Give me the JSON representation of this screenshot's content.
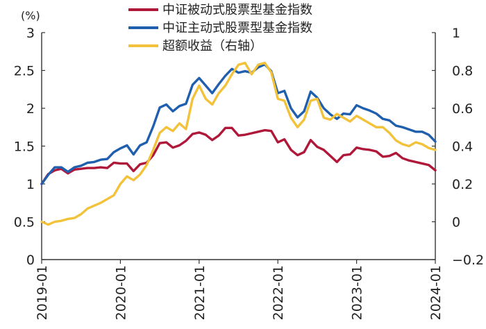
{
  "chart_data": {
    "type": "line",
    "unit_label": "(%)",
    "x_tick_labels": [
      "2019-01",
      "2020-01",
      "2021-01",
      "2022-01",
      "2023-01",
      "2024-01"
    ],
    "left_axis": {
      "ylim": [
        0,
        3
      ],
      "ticks": [
        "0",
        "0.5",
        "1",
        "1.5",
        "2",
        "2.5",
        "3"
      ]
    },
    "right_axis": {
      "ylim": [
        -0.2,
        1
      ],
      "ticks": [
        "−0.2",
        "0",
        "0.2",
        "0.4",
        "0.6",
        "0.8",
        "1"
      ]
    },
    "x_count": 61,
    "series": [
      {
        "name": "中证被动式股票型基金指数",
        "axis": "left",
        "color": "#b0183a",
        "values": [
          1.0,
          1.13,
          1.18,
          1.2,
          1.14,
          1.19,
          1.2,
          1.21,
          1.21,
          1.22,
          1.21,
          1.28,
          1.27,
          1.27,
          1.17,
          1.26,
          1.28,
          1.38,
          1.54,
          1.55,
          1.48,
          1.51,
          1.57,
          1.66,
          1.68,
          1.65,
          1.58,
          1.64,
          1.74,
          1.74,
          1.64,
          1.65,
          1.67,
          1.69,
          1.71,
          1.7,
          1.55,
          1.59,
          1.45,
          1.38,
          1.42,
          1.58,
          1.49,
          1.45,
          1.37,
          1.29,
          1.38,
          1.39,
          1.48,
          1.46,
          1.45,
          1.43,
          1.36,
          1.37,
          1.41,
          1.34,
          1.31,
          1.29,
          1.27,
          1.25,
          1.18
        ]
      },
      {
        "name": "中证主动式股票型基金指数",
        "axis": "left",
        "color": "#1f5fae",
        "values": [
          1.0,
          1.12,
          1.22,
          1.22,
          1.16,
          1.22,
          1.24,
          1.28,
          1.29,
          1.32,
          1.33,
          1.42,
          1.47,
          1.51,
          1.39,
          1.51,
          1.55,
          1.76,
          2.01,
          2.05,
          1.96,
          2.03,
          2.06,
          2.31,
          2.4,
          2.3,
          2.2,
          2.32,
          2.43,
          2.52,
          2.47,
          2.49,
          2.47,
          2.54,
          2.58,
          2.49,
          2.2,
          2.23,
          2.0,
          1.88,
          1.96,
          2.22,
          2.14,
          2.0,
          1.92,
          1.86,
          1.93,
          1.92,
          2.04,
          2.0,
          1.97,
          1.93,
          1.86,
          1.84,
          1.77,
          1.75,
          1.72,
          1.69,
          1.69,
          1.65,
          1.56
        ]
      },
      {
        "name": "超额收益(右轴)",
        "axis": "right",
        "color": "#f2c23a",
        "values": [
          0.0,
          -0.015,
          0.0,
          0.005,
          0.015,
          0.02,
          0.04,
          0.07,
          0.085,
          0.1,
          0.12,
          0.14,
          0.2,
          0.24,
          0.22,
          0.25,
          0.3,
          0.38,
          0.47,
          0.5,
          0.48,
          0.52,
          0.49,
          0.65,
          0.72,
          0.65,
          0.62,
          0.68,
          0.72,
          0.78,
          0.83,
          0.84,
          0.78,
          0.83,
          0.84,
          0.79,
          0.65,
          0.64,
          0.55,
          0.5,
          0.54,
          0.64,
          0.65,
          0.55,
          0.54,
          0.57,
          0.55,
          0.53,
          0.56,
          0.54,
          0.52,
          0.5,
          0.5,
          0.47,
          0.43,
          0.41,
          0.4,
          0.42,
          0.41,
          0.39,
          0.38
        ]
      }
    ],
    "legend": {
      "position": "top-center",
      "entries": [
        {
          "label": "中证被动式股票型基金指数",
          "color": "#b0183a"
        },
        {
          "label": "中证主动式股票型基金指数",
          "color": "#1f5fae"
        },
        {
          "label": "超额收益（右轴）",
          "color": "#f2c23a"
        }
      ]
    }
  }
}
